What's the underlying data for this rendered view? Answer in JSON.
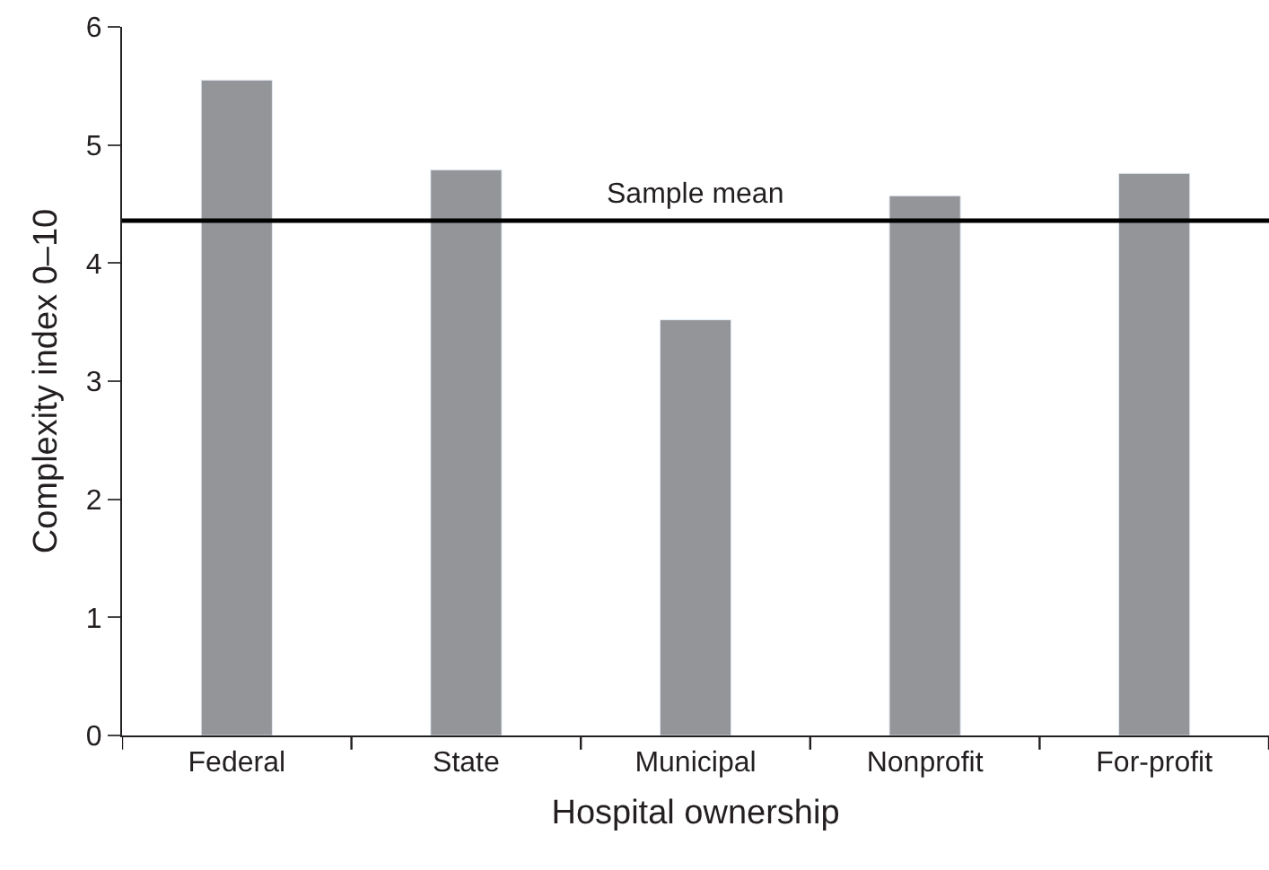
{
  "chart_data": {
    "type": "bar",
    "xlabel": "Hospital ownership",
    "ylabel": "Complexity index 0–10",
    "categories": [
      "Federal",
      "State",
      "Municipal",
      "Nonprofit",
      "For-profit"
    ],
    "values": [
      5.55,
      4.79,
      3.52,
      4.57,
      4.76
    ],
    "color": "#939598",
    "ylim": [
      0,
      6
    ],
    "yticks": [
      0,
      1,
      2,
      3,
      4,
      5,
      6
    ],
    "ref_lines": [
      {
        "axis": "y",
        "value": 4.36,
        "label": "Sample mean",
        "color": "#000000",
        "line_style": "solid"
      }
    ]
  }
}
